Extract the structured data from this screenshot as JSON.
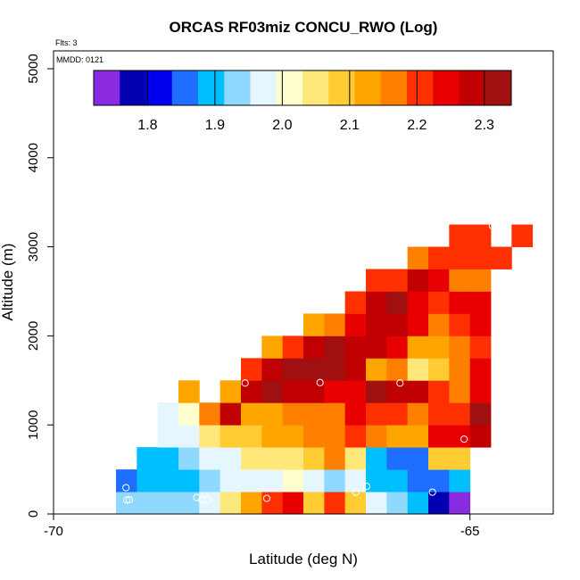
{
  "chart_data": {
    "type": "heatmap",
    "title": "ORCAS RF03miz CONCU_RWO (Log)",
    "flts_label": "Flts: 3",
    "date_label": "MMDD: 0121",
    "xlabel": "Latitude (deg N)",
    "ylabel": "Altitude (m)",
    "xlim": [
      -70,
      -64
    ],
    "ylim": [
      0,
      5200
    ],
    "x_ticks": [
      -70,
      -65
    ],
    "x_tick_labels": [
      "-70",
      "-65"
    ],
    "y_ticks": [
      0,
      1000,
      2000,
      3000,
      4000,
      5000
    ],
    "y_tick_labels": [
      "0",
      "1000",
      "2000",
      "3000",
      "4000",
      "5000"
    ],
    "colorbar": {
      "range": [
        1.72,
        2.34
      ],
      "ticks": [
        1.8,
        1.9,
        2.0,
        2.1,
        2.2,
        2.3
      ],
      "tick_labels": [
        "1.8",
        "1.9",
        "2.0",
        "2.1",
        "2.2",
        "2.3"
      ],
      "colors": [
        "#8a2be2",
        "#0000b0",
        "#0000ee",
        "#1e6fff",
        "#00bfff",
        "#8fd8ff",
        "#e6f6ff",
        "#ffffd0",
        "#ffe87a",
        "#ffcc33",
        "#ffa500",
        "#ff7f00",
        "#ff3000",
        "#e80000",
        "#c00000",
        "#a01010"
      ]
    },
    "cell_width_deg": 0.25,
    "cell_height_m": 250,
    "columns": [
      {
        "x0": -69.25,
        "y0": 0,
        "values": [
          1.94,
          1.86
        ]
      },
      {
        "x0": -69.0,
        "y0": 0,
        "values": [
          1.94,
          1.88,
          1.89
        ]
      },
      {
        "x0": -68.75,
        "y0": 0,
        "values": [
          1.95,
          1.88,
          1.91,
          1.96,
          1.99
        ]
      },
      {
        "x0": -68.5,
        "y0": 0,
        "values": [
          1.95,
          1.9,
          1.94,
          1.98,
          2.0,
          2.14
        ]
      },
      {
        "x0": -68.25,
        "y0": 0,
        "values": [
          1.96,
          1.93,
          1.96,
          2.04,
          2.18
        ]
      },
      {
        "x0": -68.0,
        "y0": 0,
        "values": [
          2.06,
          1.97,
          1.98,
          2.07,
          2.27,
          2.11
        ]
      },
      {
        "x0": -67.75,
        "y0": 0,
        "values": [
          2.13,
          1.98,
          2.05,
          2.1,
          2.14,
          2.3,
          2.21
        ]
      },
      {
        "x0": -67.5,
        "y0": 0,
        "values": [
          2.22,
          1.99,
          2.04,
          2.12,
          2.13,
          2.32,
          2.28,
          2.13
        ]
      },
      {
        "x0": -67.25,
        "y0": 0,
        "values": [
          2.25,
          2.02,
          2.06,
          2.14,
          2.15,
          2.3,
          2.31,
          2.2
        ]
      },
      {
        "x0": -67.0,
        "y0": 0,
        "values": [
          2.1,
          1.98,
          2.09,
          2.16,
          2.16,
          2.29,
          2.31,
          2.29,
          2.13
        ]
      },
      {
        "x0": -66.75,
        "y0": 0,
        "values": [
          2.22,
          1.93,
          2.15,
          2.18,
          2.16,
          2.26,
          2.32,
          2.31,
          2.16
        ]
      },
      {
        "x0": -66.5,
        "y0": 0,
        "values": [
          2.08,
          1.98,
          2.06,
          2.2,
          2.23,
          2.23,
          2.27,
          2.3,
          2.24,
          2.19
        ]
      },
      {
        "x0": -66.25,
        "y0": 0,
        "values": [
          1.98,
          1.91,
          1.89,
          2.18,
          2.2,
          2.32,
          2.14,
          2.27,
          2.3,
          2.29,
          2.21
        ]
      },
      {
        "x0": -66.0,
        "y0": 0,
        "values": [
          1.93,
          1.9,
          1.86,
          2.12,
          2.19,
          2.3,
          2.17,
          2.24,
          2.28,
          2.31,
          2.21
        ]
      },
      {
        "x0": -65.75,
        "y0": 0,
        "values": [
          1.88,
          1.86,
          1.84,
          2.14,
          2.18,
          2.29,
          2.05,
          2.14,
          2.23,
          2.26,
          2.28,
          2.16
        ]
      },
      {
        "x0": -65.5,
        "y0": 0,
        "values": [
          1.76,
          1.87,
          2.1,
          2.24,
          2.21,
          2.2,
          2.09,
          2.14,
          2.17,
          2.21,
          2.24,
          2.22
        ]
      },
      {
        "x0": -65.25,
        "y0": 0,
        "values": [
          1.73,
          1.9,
          2.1,
          2.26,
          2.21,
          2.18,
          2.16,
          2.16,
          2.19,
          2.26,
          2.16,
          2.19,
          2.21
        ]
      },
      {
        "x0": -65.0,
        "y0": 750,
        "values": [
          2.3,
          2.31,
          2.24,
          2.24,
          2.21,
          2.24,
          2.25,
          2.17,
          2.19,
          2.21
        ]
      },
      {
        "x0": -64.75,
        "y0": 2750,
        "values": [
          2.2
        ]
      },
      {
        "x0": -64.5,
        "y0": 3000,
        "values": [
          2.22
        ]
      }
    ],
    "points": [
      {
        "x": -69.12,
        "y": 155
      },
      {
        "x": -69.09,
        "y": 160
      },
      {
        "x": -69.13,
        "y": 295
      },
      {
        "x": -68.73,
        "y": 1300
      },
      {
        "x": -68.65,
        "y": 1475
      },
      {
        "x": -68.28,
        "y": 185
      },
      {
        "x": -68.22,
        "y": 160
      },
      {
        "x": -68.15,
        "y": 160
      },
      {
        "x": -67.7,
        "y": 1470
      },
      {
        "x": -67.44,
        "y": 175
      },
      {
        "x": -66.8,
        "y": 1475
      },
      {
        "x": -66.37,
        "y": 245
      },
      {
        "x": -66.24,
        "y": 310
      },
      {
        "x": -65.84,
        "y": 1470
      },
      {
        "x": -65.45,
        "y": 245
      },
      {
        "x": -65.07,
        "y": 840
      },
      {
        "x": -64.73,
        "y": 3235
      }
    ]
  }
}
